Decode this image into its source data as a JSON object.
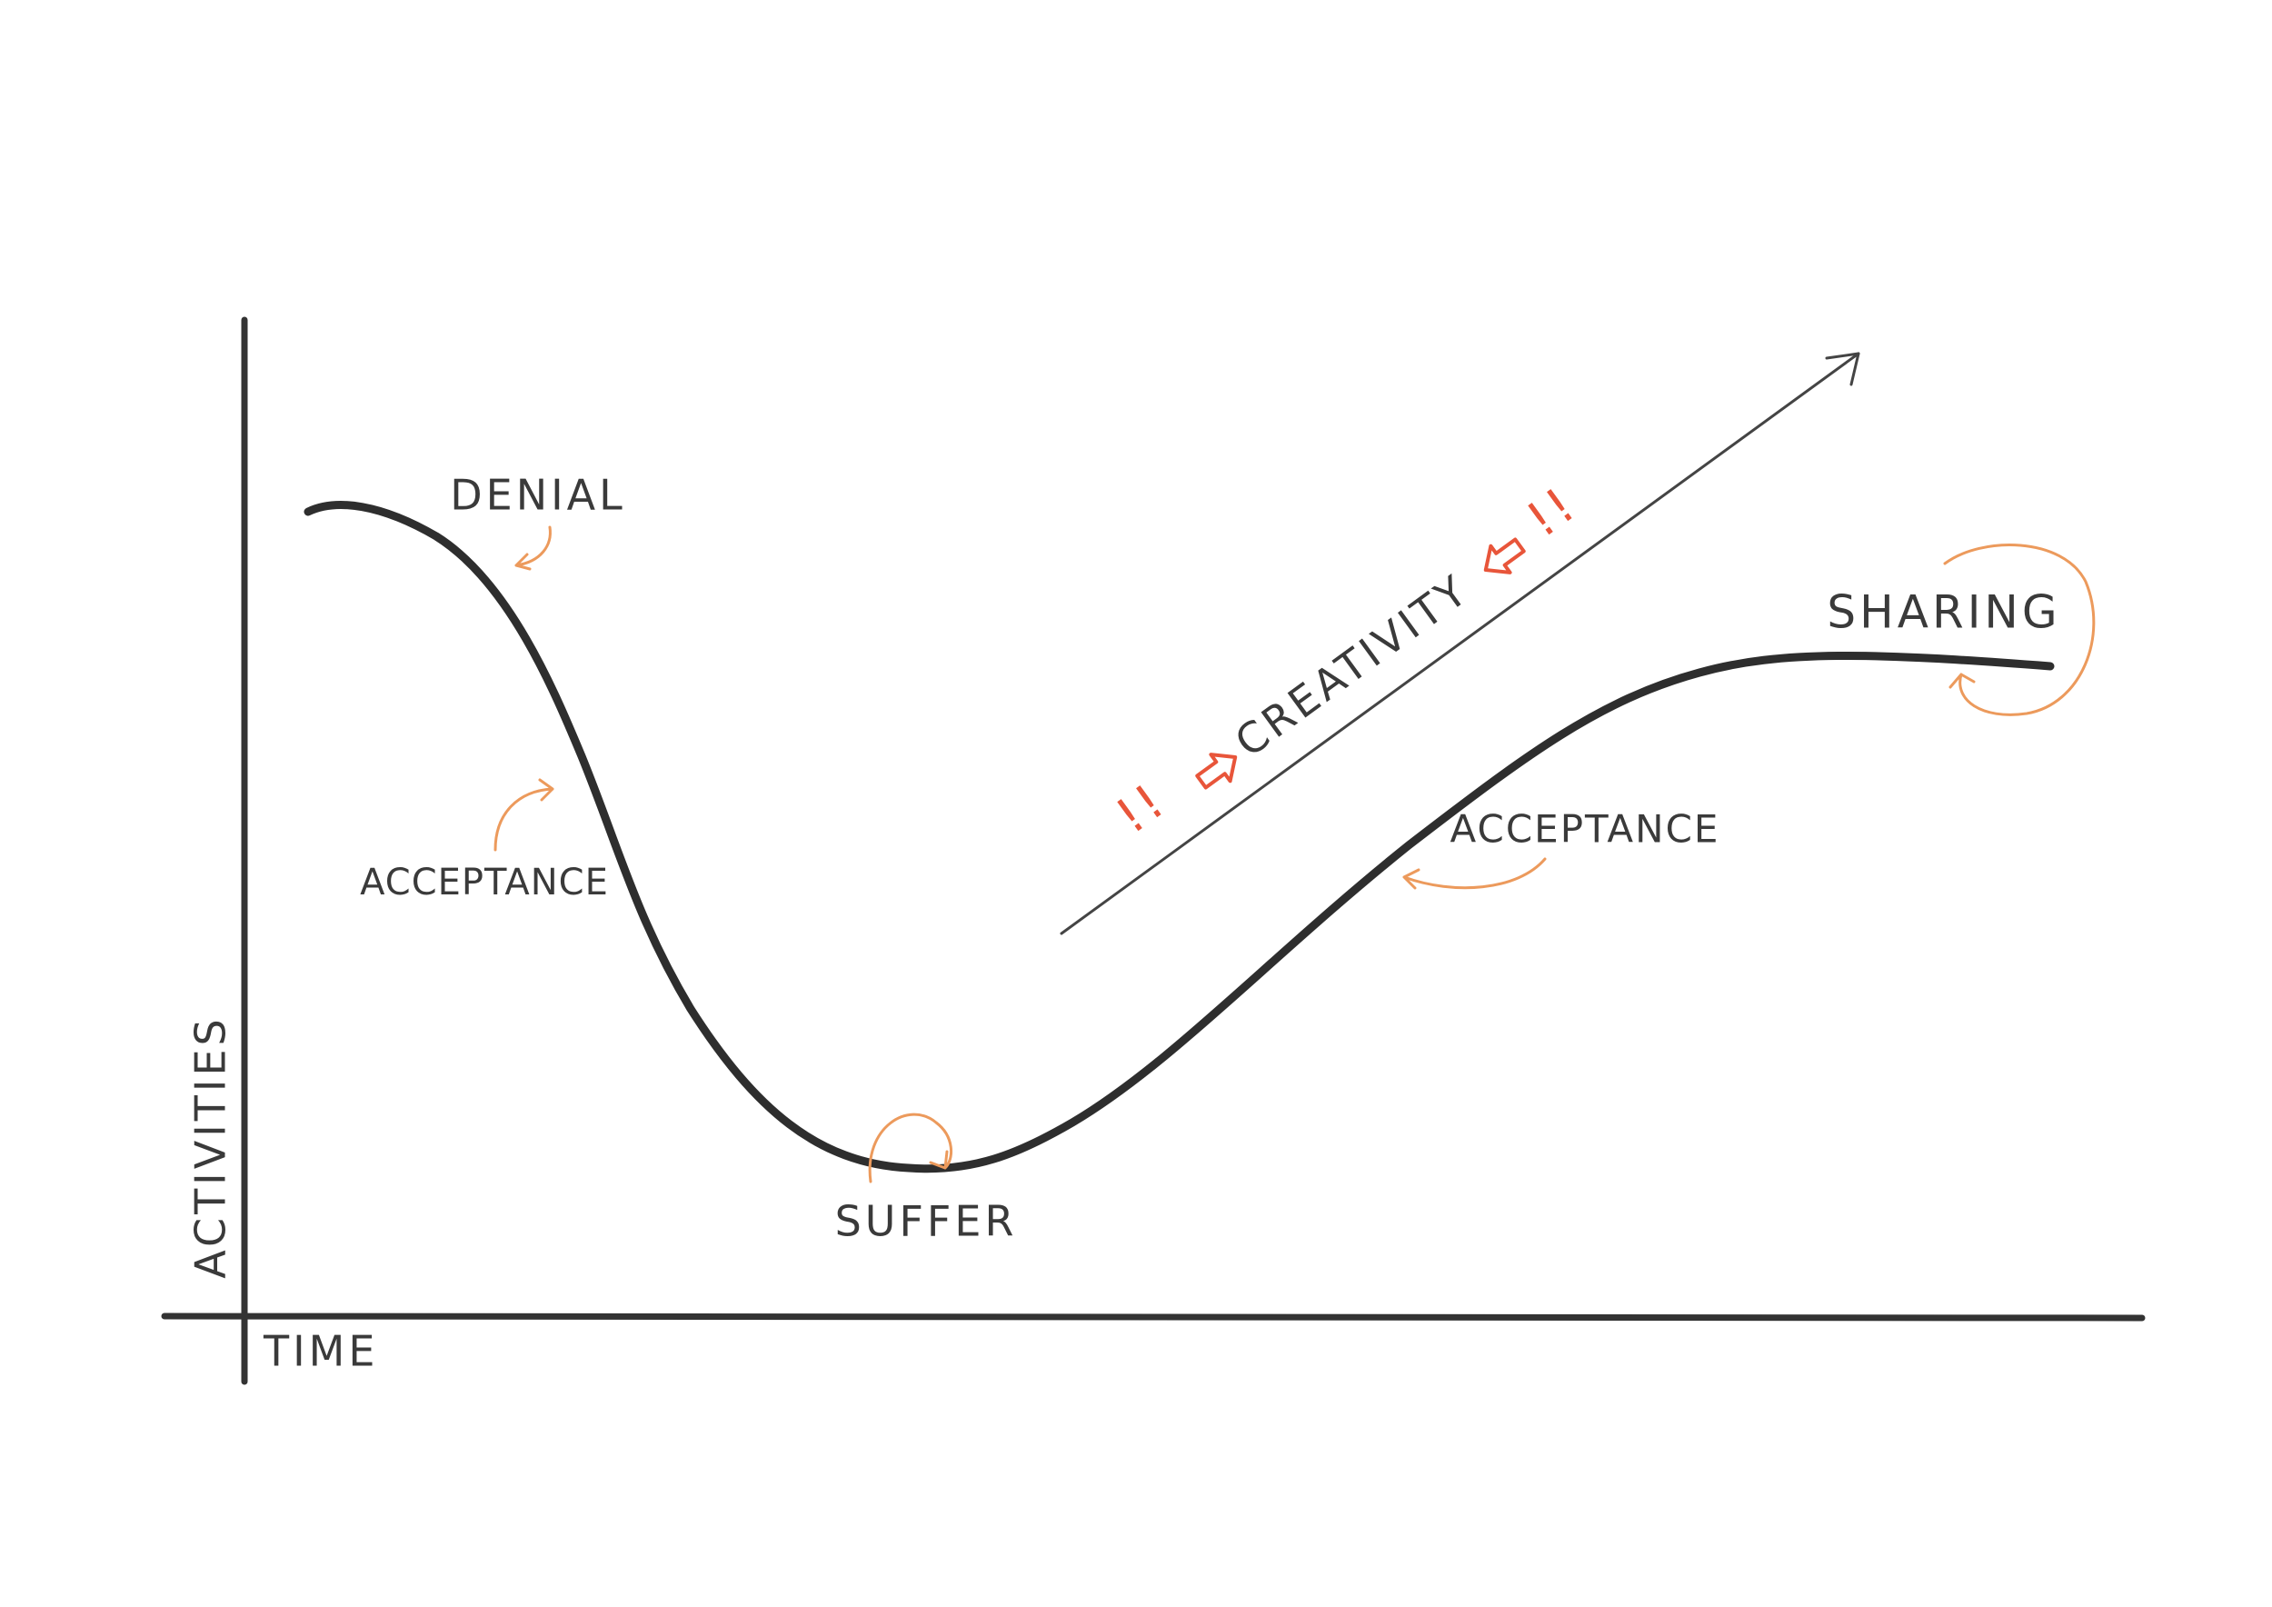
{
  "axes": {
    "y_label": "ACTIVITIES",
    "x_label": "TIME"
  },
  "stages": [
    {
      "label": "DENIAL"
    },
    {
      "label": "ACCEPTANCE"
    },
    {
      "label": "SUFFER"
    },
    {
      "label": "ACCEPTANCE"
    },
    {
      "label": "SHARING"
    }
  ],
  "creativity": {
    "label": "CREATIVITY",
    "mark_left": "!!",
    "mark_right": "!!"
  }
}
